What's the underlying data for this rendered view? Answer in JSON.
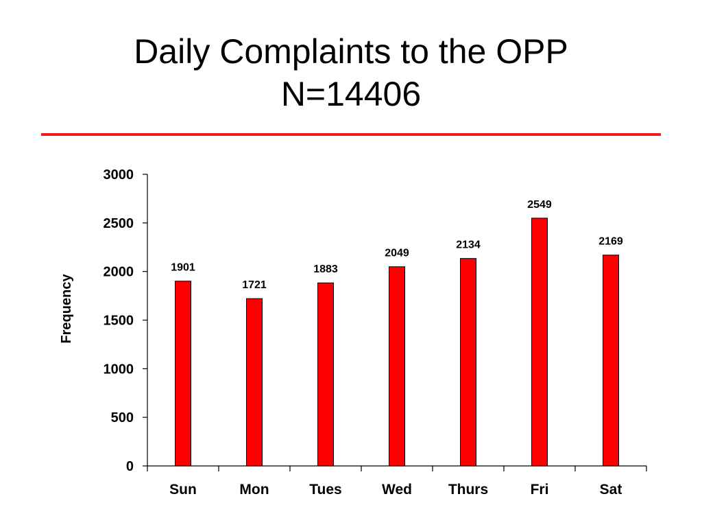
{
  "slide": {
    "title_line1": "Daily Complaints to the OPP",
    "title_line2": "N=14406",
    "rule_color": "#ee1c25"
  },
  "chart_data": {
    "type": "bar",
    "title": "",
    "xlabel": "",
    "ylabel": "Frequency",
    "categories": [
      "Sun",
      "Mon",
      "Tues",
      "Wed",
      "Thurs",
      "Fri",
      "Sat"
    ],
    "values": [
      1901,
      1721,
      1883,
      2049,
      2134,
      2549,
      2169
    ],
    "data_labels": [
      "1901",
      "1721",
      "1883",
      "2049",
      "2134",
      "2549",
      "2169"
    ],
    "ylim": [
      0,
      3000
    ],
    "yticks": [
      0,
      500,
      1000,
      1500,
      2000,
      2500,
      3000
    ],
    "ytick_labels": [
      "0",
      "500",
      "1000",
      "1500",
      "2000",
      "2500",
      "3000"
    ],
    "bar_color": "#ff0000",
    "bar_edge_color": "#000000",
    "grid": false,
    "legend": "none"
  }
}
